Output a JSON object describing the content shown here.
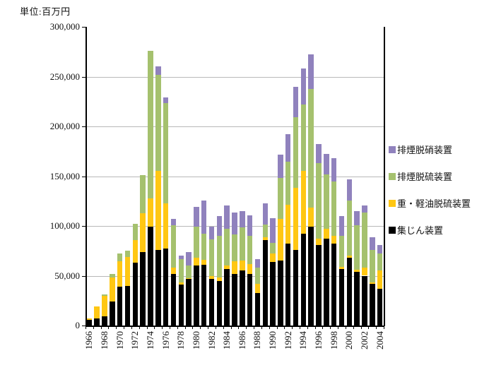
{
  "unit_label": "単位:百万円",
  "chart_data": {
    "type": "bar",
    "stacked": true,
    "title": "",
    "unit": "百万円",
    "ylim": [
      0,
      300000
    ],
    "ytick_step": 50000,
    "ytick_labels": [
      "0",
      "50,000",
      "100,000",
      "150,000",
      "200,000",
      "250,000",
      "300,000"
    ],
    "grid": true,
    "legend_position": "right",
    "legend_order_top_to_bottom": [
      "排煙脱硝装置",
      "排煙脱硫装置",
      "重・軽油脱硫装置",
      "集じん装置"
    ],
    "xtick_label_interval": 2,
    "categories": [
      1966,
      1967,
      1968,
      1969,
      1970,
      1971,
      1972,
      1973,
      1974,
      1975,
      1976,
      1977,
      1978,
      1979,
      1980,
      1981,
      1982,
      1983,
      1984,
      1985,
      1986,
      1987,
      1988,
      1989,
      1990,
      1991,
      1992,
      1993,
      1994,
      1995,
      1996,
      1997,
      1998,
      1999,
      2000,
      2001,
      2002,
      2003,
      2004
    ],
    "series": [
      {
        "name": "集じん装置",
        "color": "#000000",
        "values": [
          5500,
          7000,
          9000,
          24000,
          39000,
          40000,
          63000,
          74000,
          99000,
          76000,
          77000,
          51500,
          41000,
          46500,
          60000,
          61000,
          47000,
          45000,
          57000,
          51500,
          55000,
          51500,
          32500,
          85500,
          64000,
          65000,
          82000,
          76000,
          92500,
          99500,
          81000,
          87000,
          82000,
          57000,
          68000,
          54000,
          50000,
          42000,
          37000
        ]
      },
      {
        "name": "重・軽油脱硫装置",
        "color": "#FFC713",
        "values": [
          1500,
          12500,
          20500,
          24000,
          25500,
          29000,
          23000,
          39000,
          29000,
          79000,
          46000,
          7000,
          2500,
          1000,
          8000,
          5000,
          2500,
          3000,
          3000,
          13000,
          10500,
          10500,
          9500,
          3000,
          8500,
          42000,
          39000,
          62500,
          62500,
          19000,
          6000,
          10000,
          8000,
          2000,
          2000,
          2000,
          8500,
          1500,
          18000
        ]
      },
      {
        "name": "排煙脱硫装置",
        "color": "#A5C16E",
        "values": [
          0,
          0,
          1500,
          3500,
          7500,
          6000,
          16000,
          38000,
          148000,
          96500,
          100500,
          42500,
          23500,
          12500,
          31500,
          26500,
          37000,
          42000,
          37500,
          27000,
          33000,
          28000,
          16500,
          13000,
          10500,
          41000,
          43500,
          70500,
          67000,
          119000,
          76000,
          55000,
          55000,
          31000,
          55500,
          45000,
          55000,
          32500,
          17500
        ]
      },
      {
        "name": "排煙脱硝装置",
        "color": "#9082BD",
        "values": [
          0,
          0,
          0,
          0,
          0,
          0,
          0,
          0,
          0,
          8500,
          5500,
          6000,
          3500,
          13500,
          20000,
          33000,
          13000,
          20000,
          23000,
          22000,
          16500,
          20500,
          8000,
          21000,
          25000,
          23500,
          28000,
          30500,
          36000,
          35000,
          19000,
          20000,
          23000,
          20000,
          21000,
          14000,
          7000,
          13000,
          8000
        ]
      }
    ]
  }
}
